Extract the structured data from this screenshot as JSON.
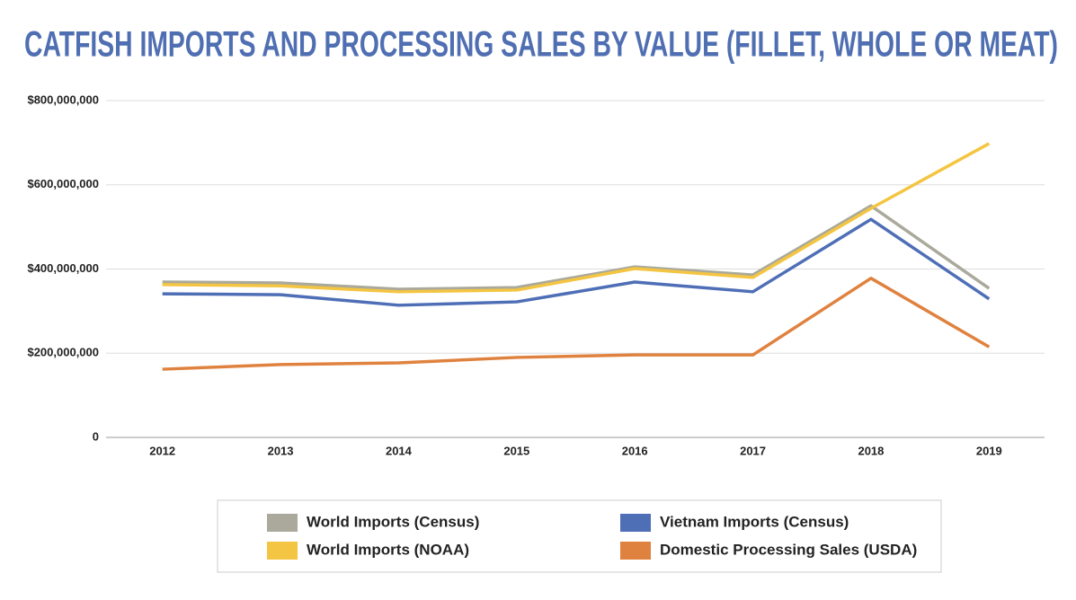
{
  "chart_data": {
    "type": "line",
    "title": "CATFISH IMPORTS AND PROCESSING SALES BY VALUE (FILLET, WHOLE OR MEAT)",
    "categories": [
      "2012",
      "2013",
      "2014",
      "2015",
      "2016",
      "2017",
      "2018",
      "2019"
    ],
    "series": [
      {
        "name": "World Imports (Census)",
        "color": "#aaa99b",
        "values": [
          369000000,
          367000000,
          352000000,
          356000000,
          405000000,
          386000000,
          550000000,
          354000000
        ]
      },
      {
        "name": "Vietnam Imports (Census)",
        "color": "#4e6eb6",
        "values": [
          341000000,
          339000000,
          314000000,
          322000000,
          369000000,
          346000000,
          518000000,
          329000000
        ]
      },
      {
        "name": "World Imports (NOAA)",
        "color": "#f4c542",
        "values": [
          363000000,
          360000000,
          346000000,
          350000000,
          401000000,
          380000000,
          544000000,
          698000000
        ]
      },
      {
        "name": "Domestic Processing Sales (USDA)",
        "color": "#e0823f",
        "values": [
          162000000,
          173000000,
          177000000,
          190000000,
          196000000,
          196000000,
          378000000,
          215000000
        ]
      }
    ],
    "ylim": [
      0,
      800000000
    ],
    "yticks": [
      0,
      {
        "value": 200000000,
        "label": "$200,000,000"
      },
      {
        "value": 400000000,
        "label": "$400,000,000"
      },
      {
        "value": 600000000,
        "label": "$600,000,000"
      },
      {
        "value": 800000000,
        "label": "$800,000,000"
      }
    ],
    "grid": true,
    "legend": "bottom"
  }
}
